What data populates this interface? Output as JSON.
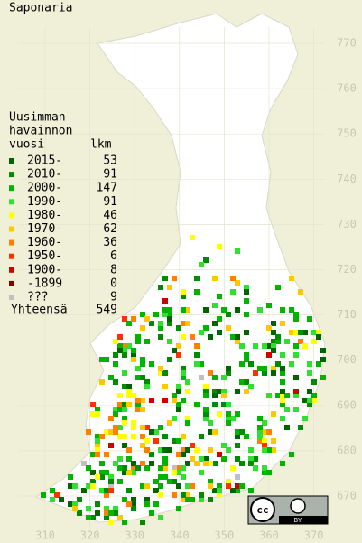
{
  "title": "Saponaria",
  "legend": {
    "header": [
      "Uusimman",
      "havainnon",
      "vuosi"
    ],
    "count_header": "lkm",
    "rows": [
      {
        "label": "2015-",
        "count": 53,
        "color": "#006400"
      },
      {
        "label": "2010-",
        "count": 91,
        "color": "#008c00"
      },
      {
        "label": "2000-",
        "count": 147,
        "color": "#00b400"
      },
      {
        "label": "1990-",
        "count": 91,
        "color": "#30e030"
      },
      {
        "label": "1980-",
        "count": 46,
        "color": "#ffff00"
      },
      {
        "label": "1970-",
        "count": 62,
        "color": "#ffc800"
      },
      {
        "label": "1960-",
        "count": 36,
        "color": "#ff8000"
      },
      {
        "label": "1950-",
        "count": 6,
        "color": "#ff3000"
      },
      {
        "label": "1900-",
        "count": 8,
        "color": "#d00000"
      },
      {
        "label": "-1899",
        "count": 0,
        "color": "#800000"
      },
      {
        "label": "???",
        "count": 9,
        "color": "#c0c0c0"
      }
    ],
    "total_label": "Yhteensä",
    "total": 549
  },
  "x_axis_labels": [
    310,
    320,
    330,
    340,
    350,
    360,
    370
  ],
  "y_axis_labels": [
    670,
    680,
    690,
    700,
    710,
    720,
    730,
    740,
    750,
    760,
    770
  ],
  "license": "BY"
}
